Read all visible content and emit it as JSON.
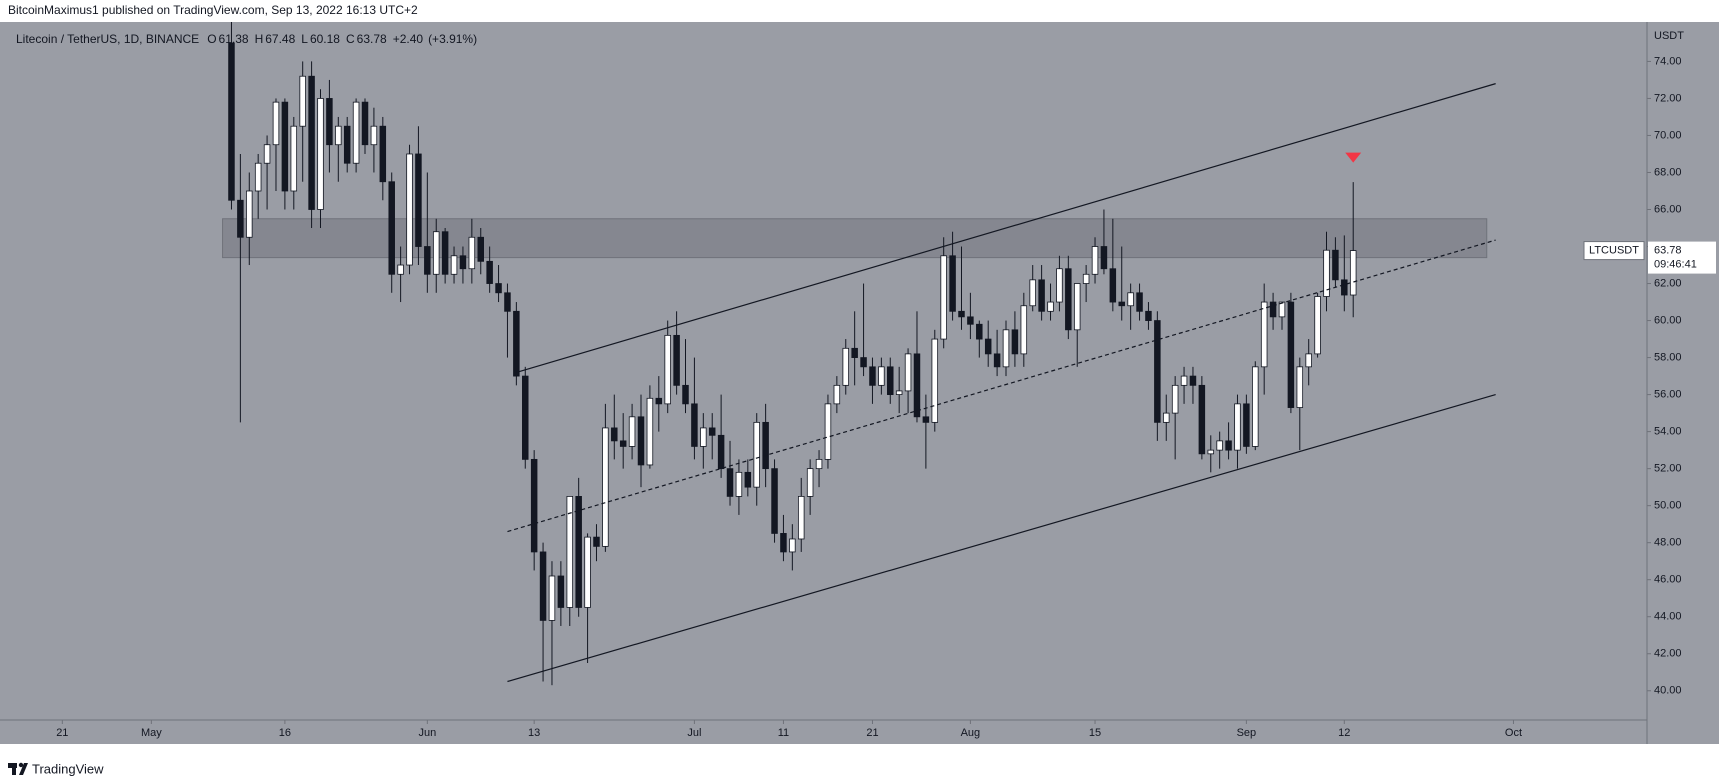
{
  "chart_data": {
    "type": "candlestick",
    "publisher": "BitcoinMaximus1 published on TradingView.com, Sep 13, 2022 16:13 UTC+2",
    "title": "Litecoin / TetherUS, 1D, BINANCE",
    "legend_ohlc": [
      {
        "label": "O",
        "value": 61.38
      },
      {
        "label": "H",
        "value": 67.48
      },
      {
        "label": "L",
        "value": 60.18
      },
      {
        "label": "C",
        "value": 63.78
      }
    ],
    "change": {
      "value": 2.4,
      "label": "+2.40"
    },
    "change_pct": {
      "value": 3.91,
      "label": "(+3.91%)"
    },
    "y_axis_unit": "USDT",
    "symbol": "LTCUSDT",
    "last_price": 63.78,
    "countdown": "09:46:41",
    "brand": "TradingView",
    "up_color": "#ffffff",
    "down_color": "#131722",
    "xlim": [
      "2022-04-14",
      "2022-10-16"
    ],
    "ylim": [
      38.42,
      76.13
    ],
    "yticks": [
      {
        "value": 40,
        "label": "40.00"
      },
      {
        "value": 42,
        "label": "42.00"
      },
      {
        "value": 44,
        "label": "44.00"
      },
      {
        "value": 46,
        "label": "46.00"
      },
      {
        "value": 48,
        "label": "48.00"
      },
      {
        "value": 50,
        "label": "50.00"
      },
      {
        "value": 52,
        "label": "52.00"
      },
      {
        "value": 54,
        "label": "54.00"
      },
      {
        "value": 56,
        "label": "56.00"
      },
      {
        "value": 58,
        "label": "58.00"
      },
      {
        "value": 60,
        "label": "60.00"
      },
      {
        "value": 62,
        "label": "62.00"
      },
      {
        "value": 64,
        "label": "64.00"
      },
      {
        "value": 66,
        "label": "66.00"
      },
      {
        "value": 68,
        "label": "68.00"
      },
      {
        "value": 70,
        "label": "70.00"
      },
      {
        "value": 72,
        "label": "72.00"
      },
      {
        "value": 74,
        "label": "74.00"
      }
    ],
    "xticks": [
      {
        "value": "2022-04-21",
        "label": "21"
      },
      {
        "value": "2022-05-01",
        "label": "May"
      },
      {
        "value": "2022-05-16",
        "label": "16"
      },
      {
        "value": "2022-06-01",
        "label": "Jun"
      },
      {
        "value": "2022-06-13",
        "label": "13"
      },
      {
        "value": "2022-07-01",
        "label": "Jul"
      },
      {
        "value": "2022-07-11",
        "label": "11"
      },
      {
        "value": "2022-07-21",
        "label": "21"
      },
      {
        "value": "2022-08-01",
        "label": "Aug"
      },
      {
        "value": "2022-08-15",
        "label": "15"
      },
      {
        "value": "2022-09-01",
        "label": "Sep"
      },
      {
        "value": "2022-09-12",
        "label": "12"
      },
      {
        "value": "2022-10-01",
        "label": "Oct"
      }
    ],
    "zone": {
      "x": [
        "2022-05-09",
        "2022-09-28"
      ],
      "y": [
        63.4,
        65.5
      ],
      "color": "#7d8089"
    },
    "channel_lines": [
      {
        "x": [
          "2022-06-11",
          "2022-09-29"
        ],
        "y": [
          57.2,
          72.8
        ],
        "dashed": false
      },
      {
        "x": [
          "2022-06-10",
          "2022-09-29"
        ],
        "y": [
          48.6,
          64.35
        ],
        "dashed": true
      },
      {
        "x": [
          "2022-06-10",
          "2022-09-29"
        ],
        "y": [
          40.5,
          56.0
        ],
        "dashed": false
      }
    ],
    "marker": {
      "x": "2022-09-13",
      "y": 68.8,
      "color": "#f23645"
    },
    "x": [
      "2022-05-10",
      "2022-05-11",
      "2022-05-12",
      "2022-05-13",
      "2022-05-14",
      "2022-05-15",
      "2022-05-16",
      "2022-05-17",
      "2022-05-18",
      "2022-05-19",
      "2022-05-20",
      "2022-05-21",
      "2022-05-22",
      "2022-05-23",
      "2022-05-24",
      "2022-05-25",
      "2022-05-26",
      "2022-05-27",
      "2022-05-28",
      "2022-05-29",
      "2022-05-30",
      "2022-05-31",
      "2022-06-01",
      "2022-06-02",
      "2022-06-03",
      "2022-06-04",
      "2022-06-05",
      "2022-06-06",
      "2022-06-07",
      "2022-06-08",
      "2022-06-09",
      "2022-06-10",
      "2022-06-11",
      "2022-06-12",
      "2022-06-13",
      "2022-06-14",
      "2022-06-15",
      "2022-06-16",
      "2022-06-17",
      "2022-06-18",
      "2022-06-19",
      "2022-06-20",
      "2022-06-21",
      "2022-06-22",
      "2022-06-23",
      "2022-06-24",
      "2022-06-25",
      "2022-06-26",
      "2022-06-27",
      "2022-06-28",
      "2022-06-29",
      "2022-06-30",
      "2022-07-01",
      "2022-07-02",
      "2022-07-03",
      "2022-07-04",
      "2022-07-05",
      "2022-07-06",
      "2022-07-07",
      "2022-07-08",
      "2022-07-09",
      "2022-07-10",
      "2022-07-11",
      "2022-07-12",
      "2022-07-13",
      "2022-07-14",
      "2022-07-15",
      "2022-07-16",
      "2022-07-17",
      "2022-07-18",
      "2022-07-19",
      "2022-07-20",
      "2022-07-21",
      "2022-07-22",
      "2022-07-23",
      "2022-07-24",
      "2022-07-25",
      "2022-07-26",
      "2022-07-27",
      "2022-07-28",
      "2022-07-29",
      "2022-07-30",
      "2022-07-31",
      "2022-08-01",
      "2022-08-02",
      "2022-08-03",
      "2022-08-04",
      "2022-08-05",
      "2022-08-06",
      "2022-08-07",
      "2022-08-08",
      "2022-08-09",
      "2022-08-10",
      "2022-08-11",
      "2022-08-12",
      "2022-08-13",
      "2022-08-14",
      "2022-08-15",
      "2022-08-16",
      "2022-08-17",
      "2022-08-18",
      "2022-08-19",
      "2022-08-20",
      "2022-08-21",
      "2022-08-22",
      "2022-08-23",
      "2022-08-24",
      "2022-08-25",
      "2022-08-26",
      "2022-08-27",
      "2022-08-28",
      "2022-08-29",
      "2022-08-30",
      "2022-08-31",
      "2022-09-01",
      "2022-09-02",
      "2022-09-03",
      "2022-09-04",
      "2022-09-05",
      "2022-09-06",
      "2022-09-07",
      "2022-09-08",
      "2022-09-09",
      "2022-09-10",
      "2022-09-11",
      "2022-09-12",
      "2022-09-13"
    ],
    "open": [
      75,
      66.5,
      64.5,
      67,
      68.5,
      69.5,
      71.8,
      67,
      70.5,
      73.2,
      66,
      72,
      69.5,
      70.5,
      68.5,
      71.8,
      69.5,
      70.5,
      67.5,
      62.5,
      63,
      69,
      64,
      62.5,
      64.8,
      62.5,
      63.5,
      62.8,
      64.5,
      63.2,
      62,
      61.5,
      60.5,
      57,
      52.5,
      47.5,
      43.8,
      46.2,
      44.5,
      50.5,
      44.5,
      48.3,
      47.8,
      54.2,
      53.5,
      53.2,
      54.8,
      52.2,
      55.8,
      55.5,
      59.2,
      56.5,
      55.5,
      53.2,
      54.2,
      53.8,
      52,
      50.5,
      51.8,
      51,
      54.5,
      52,
      48.5,
      47.5,
      48.2,
      50.5,
      52,
      52.5,
      55.5,
      56.5,
      58.5,
      58,
      57.5,
      56.5,
      57.5,
      56,
      56.2,
      58.2,
      54.8,
      54.5,
      59,
      63.5,
      60.5,
      60.2,
      59.8,
      59,
      58.2,
      57.5,
      59.5,
      58.2,
      60.8,
      62.2,
      60.5,
      61,
      62.8,
      59.5,
      62,
      62.5,
      64,
      62.8,
      61,
      60.8,
      61.5,
      60.5,
      60,
      54.5,
      55,
      56.5,
      57,
      56.5,
      52.8,
      53,
      53.5,
      53,
      55.5,
      53.2,
      57.5,
      61,
      60.2,
      61,
      55.3,
      57.5,
      58.2,
      61.3,
      63.8,
      62.2,
      61.38
    ],
    "high": [
      78,
      69,
      68,
      69,
      70,
      72,
      72,
      71,
      74,
      74,
      72.5,
      73,
      71,
      71,
      72,
      72,
      71.5,
      71,
      68,
      64,
      69.5,
      70.5,
      68,
      65.5,
      65,
      64,
      64,
      65.5,
      65,
      64,
      63,
      62,
      61,
      57.5,
      53,
      48,
      47,
      47,
      50.5,
      51.5,
      48.5,
      49,
      55.5,
      56,
      55,
      55.5,
      56,
      56.5,
      57,
      60,
      60.5,
      59,
      58,
      55,
      55,
      56,
      53.5,
      52.5,
      52.5,
      55,
      55.5,
      52.5,
      49.5,
      49,
      51.5,
      52.5,
      53,
      56,
      57,
      59,
      60.5,
      62,
      58,
      58,
      58,
      57.5,
      58.5,
      60.5,
      56,
      59.5,
      64.5,
      64.8,
      64,
      61.5,
      60,
      60,
      59.5,
      60,
      60.5,
      61.5,
      63,
      63,
      62,
      63.5,
      63.5,
      62,
      63,
      64.5,
      66,
      65.5,
      64,
      62,
      62,
      61,
      60.5,
      56,
      57,
      57.5,
      57.5,
      57,
      53.8,
      54,
      54.5,
      56,
      56,
      57.8,
      62,
      61.5,
      61,
      61.5,
      58,
      59,
      61.5,
      64.8,
      64.5,
      64.6,
      67.48
    ],
    "low": [
      66,
      54.5,
      63,
      65.5,
      66,
      67,
      66,
      66,
      67.5,
      65,
      65,
      68,
      67.5,
      68,
      68,
      69,
      68,
      66.5,
      61.5,
      61,
      62.5,
      63,
      61.5,
      61.5,
      62,
      62,
      62,
      62,
      62.5,
      61.5,
      61,
      58,
      56.5,
      52,
      46.5,
      40.5,
      40.3,
      43.5,
      43.5,
      44,
      41.5,
      47,
      47.5,
      52.5,
      52,
      52.5,
      51,
      52,
      54,
      55,
      56,
      55,
      52.5,
      52,
      52.5,
      51.5,
      50,
      49.5,
      50.5,
      50,
      51,
      48,
      47,
      46.5,
      47.5,
      49.5,
      51,
      52,
      55,
      56,
      56.5,
      57,
      55.5,
      56,
      55.5,
      55,
      55,
      54.5,
      52,
      54,
      58.5,
      60,
      59.5,
      59,
      58,
      57.5,
      57,
      57,
      57.5,
      57.5,
      60.5,
      60,
      60,
      60.5,
      59,
      57.5,
      61,
      62,
      62.5,
      60.5,
      60,
      59.5,
      60,
      59.5,
      53.5,
      53.5,
      52.5,
      55.5,
      55.5,
      52.5,
      51.8,
      52,
      52.5,
      52,
      52.8,
      53,
      56,
      59.5,
      59.5,
      55,
      53,
      56.5,
      58,
      60.5,
      61.8,
      60.5,
      60.18
    ],
    "close": [
      66.5,
      64.5,
      67,
      68.5,
      69.5,
      71.8,
      67,
      70.5,
      73.2,
      66,
      72,
      69.5,
      70.5,
      68.5,
      71.8,
      69.5,
      70.5,
      67.5,
      62.5,
      63,
      69,
      64,
      62.5,
      64.8,
      62.5,
      63.5,
      62.8,
      64.5,
      63.2,
      62,
      61.5,
      60.5,
      57,
      52.5,
      47.5,
      43.8,
      46.2,
      44.5,
      50.5,
      44.5,
      48.3,
      47.8,
      54.2,
      53.5,
      53.2,
      54.8,
      52.2,
      55.8,
      55.5,
      59.2,
      56.5,
      55.5,
      53.2,
      54.2,
      53.8,
      52,
      50.5,
      51.8,
      51,
      54.5,
      52,
      48.5,
      47.5,
      48.2,
      50.5,
      52,
      52.5,
      55.5,
      56.5,
      58.5,
      58,
      57.5,
      56.5,
      57.5,
      56,
      56.2,
      58.2,
      54.8,
      54.5,
      59,
      63.5,
      60.5,
      60.2,
      59.8,
      59,
      58.2,
      57.5,
      59.5,
      58.2,
      60.8,
      62.2,
      60.5,
      61,
      62.8,
      59.5,
      62,
      62.5,
      64,
      62.8,
      61,
      60.8,
      61.5,
      60.5,
      60,
      54.5,
      55,
      56.5,
      57,
      56.5,
      52.8,
      53,
      53.5,
      53,
      55.5,
      53.2,
      57.5,
      61,
      60.2,
      61,
      55.3,
      57.5,
      58.2,
      61.3,
      63.8,
      62.2,
      61.38,
      63.78
    ]
  }
}
